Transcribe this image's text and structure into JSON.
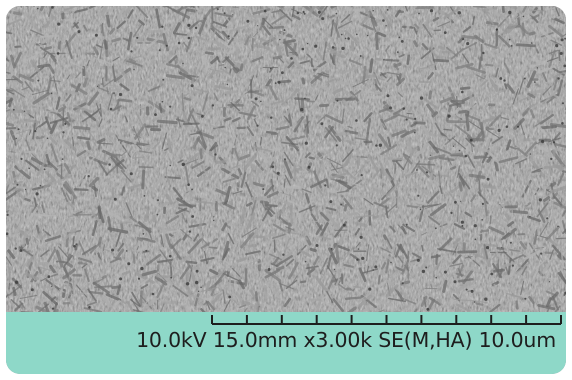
{
  "sem_image": {
    "accelerating_voltage": "10.0kV",
    "working_distance": "15.0mm",
    "magnification": "x3.00k",
    "detector_mode": "SE(M,HA)",
    "scale_bar_length": "10.0um",
    "scale_bar_divisions": 10,
    "colors": {
      "info_bar": "#8ed8c8",
      "text": "#1e1e1e",
      "image_base": "#8f8f8f"
    }
  }
}
